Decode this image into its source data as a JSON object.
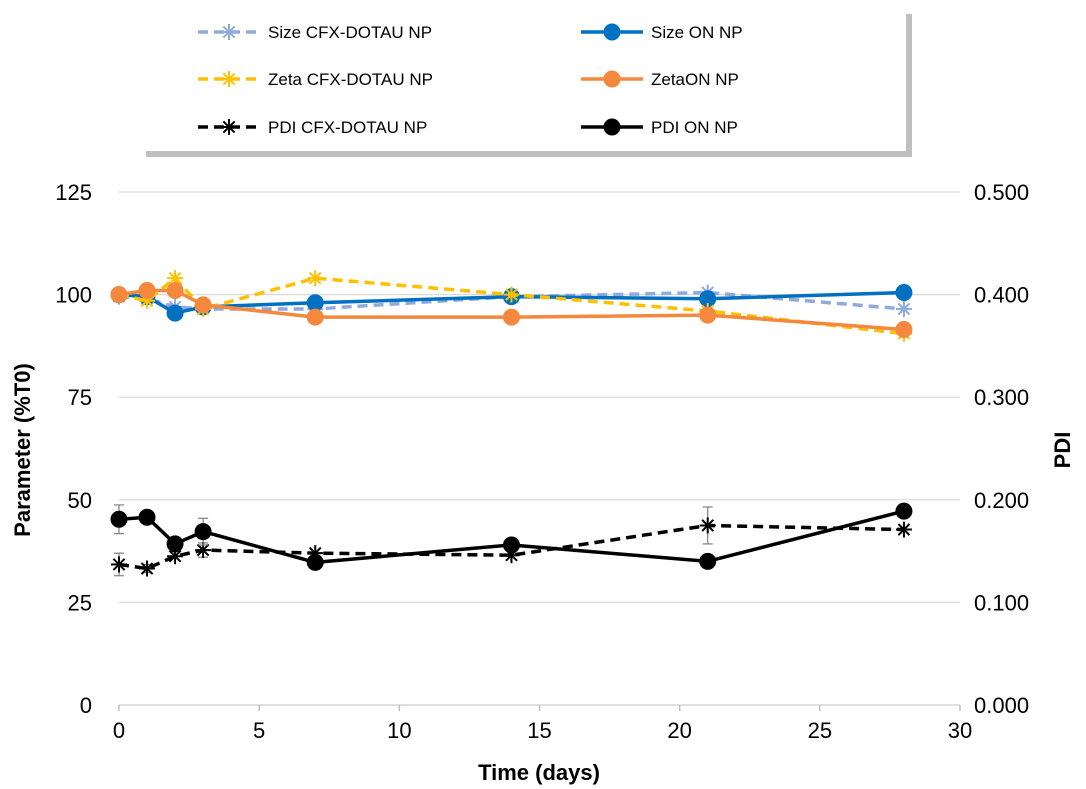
{
  "chart_data": {
    "type": "line",
    "title": "",
    "xlabel": "Time (days)",
    "ylabel": "Parameter (%T0)",
    "y2label": "PDI",
    "xlim": [
      0,
      30
    ],
    "ylim": [
      0,
      125
    ],
    "y2lim": [
      0,
      0.5
    ],
    "x_ticks": [
      "0",
      "5",
      "10",
      "15",
      "20",
      "25",
      "30"
    ],
    "y_ticks": [
      "0",
      "25",
      "50",
      "75",
      "100",
      "125"
    ],
    "y2_ticks": [
      "0.000",
      "0.100",
      "0.200",
      "0.300",
      "0.400",
      "0.500"
    ],
    "grid": true,
    "legend_position": "top",
    "series": [
      {
        "name": "Size CFX-DOTAU NP",
        "axis": "left",
        "color": "#8FAADC",
        "dash": true,
        "marker": "asterisk",
        "x": [
          0,
          1,
          2,
          3,
          7,
          14,
          21,
          28
        ],
        "y": [
          99.5,
          99,
          97,
          96.5,
          96.5,
          99.5,
          100.5,
          96.5
        ],
        "err": [
          0,
          0,
          0,
          0,
          0,
          0,
          0,
          0
        ]
      },
      {
        "name": "Size ON NP",
        "axis": "left",
        "color": "#0070C0",
        "dash": false,
        "marker": "circle",
        "x": [
          0,
          1,
          2,
          3,
          7,
          14,
          21,
          28
        ],
        "y": [
          100,
          99.5,
          95.5,
          97,
          98,
          99.5,
          99,
          100.5
        ],
        "err": [
          0,
          0,
          0,
          0,
          0,
          0,
          0,
          0
        ]
      },
      {
        "name": "Zeta CFX-DOTAU NP",
        "axis": "left",
        "color": "#FFC000",
        "dash": true,
        "marker": "asterisk",
        "x": [
          0,
          1,
          2,
          3,
          7,
          14,
          21,
          28
        ],
        "y": [
          100,
          98.5,
          104,
          96.5,
          104,
          100,
          96,
          90.5
        ],
        "err": [
          0,
          0,
          0,
          0,
          0,
          0,
          0,
          0
        ]
      },
      {
        "name": "ZetaON NP",
        "axis": "left",
        "color": "#F4883C",
        "dash": false,
        "marker": "circle",
        "x": [
          0,
          1,
          2,
          3,
          7,
          14,
          21,
          28
        ],
        "y": [
          100,
          101,
          101,
          97.5,
          94.5,
          94.5,
          95,
          91.5
        ],
        "err": [
          0,
          0,
          0,
          0,
          0,
          0,
          0,
          0
        ]
      },
      {
        "name": "PDI CFX-DOTAU NP",
        "axis": "right",
        "color": "#000000",
        "dash": true,
        "marker": "asterisk",
        "x": [
          0,
          1,
          2,
          3,
          7,
          14,
          21,
          28
        ],
        "y": [
          0.137,
          0.133,
          0.145,
          0.151,
          0.148,
          0.146,
          0.175,
          0.171
        ],
        "err": [
          0.011,
          0.004,
          0,
          0.007,
          0,
          0,
          0.018,
          0
        ]
      },
      {
        "name": "PDI ON NP",
        "axis": "right",
        "color": "#000000",
        "dash": false,
        "marker": "circle",
        "x": [
          0,
          1,
          2,
          3,
          7,
          14,
          21,
          28
        ],
        "y": [
          0.181,
          0.183,
          0.157,
          0.169,
          0.139,
          0.156,
          0.14,
          0.189
        ],
        "err": [
          0.014,
          0,
          0,
          0.013,
          0,
          0,
          0,
          0
        ]
      }
    ]
  }
}
